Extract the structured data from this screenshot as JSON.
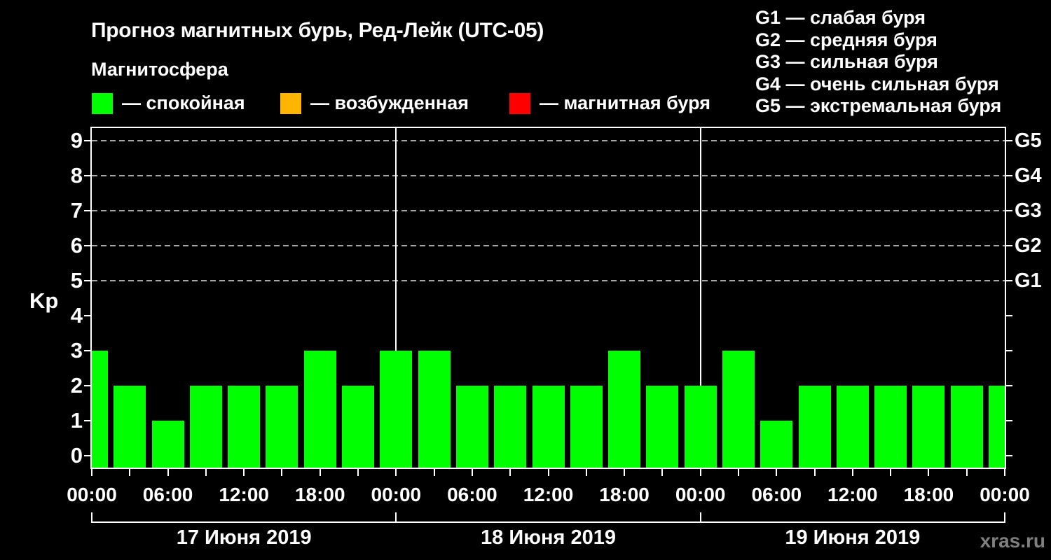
{
  "title": "Прогноз магнитных бурь, Ред-Лейк (UTC-05)",
  "subtitle": "Магнитосфера",
  "watermark": "xras.ru",
  "colors": {
    "background": "#000000",
    "axis": "#FFFFFF",
    "grid": "#A6A6A6",
    "quiet": "#00FF00",
    "excited": "#FFB400",
    "storm": "#FF0000",
    "watermark": "#7F7F7F"
  },
  "magnetosphere_legend": [
    {
      "state": "quiet",
      "color": "#00FF00",
      "label": "— спокойная"
    },
    {
      "state": "excited",
      "color": "#FFB400",
      "label": "— возбужденная"
    },
    {
      "state": "storm",
      "color": "#FF0000",
      "label": "— магнитная буря"
    }
  ],
  "storm_scale_legend": [
    "G1 — слабая буря",
    "G2 — средняя буря",
    "G3 — сильная буря",
    "G4 — очень сильная буря",
    "G5 — экстремальная буря"
  ],
  "chart_data": {
    "type": "bar",
    "ylabel": "Kp",
    "ylim": [
      0,
      9.4
    ],
    "yticks": [
      0,
      1,
      2,
      3,
      4,
      5,
      6,
      7,
      8,
      9
    ],
    "grid_levels": [
      5,
      6,
      7,
      8,
      9
    ],
    "right_axis_labels": [
      {
        "label": "G1",
        "kp": 5
      },
      {
        "label": "G2",
        "kp": 6
      },
      {
        "label": "G3",
        "kp": 7
      },
      {
        "label": "G4",
        "kp": 8
      },
      {
        "label": "G5",
        "kp": 9
      }
    ],
    "interval_hours": 3,
    "time_tick_labels": [
      "00:00",
      "06:00",
      "12:00",
      "18:00",
      "00:00",
      "06:00",
      "12:00",
      "18:00",
      "00:00",
      "06:00",
      "12:00",
      "18:00",
      "00:00"
    ],
    "days": [
      {
        "date": "17 Июня 2019",
        "kp": [
          3,
          2,
          1,
          2,
          2,
          2,
          3,
          2
        ]
      },
      {
        "date": "18 Июня 2019",
        "kp": [
          3,
          3,
          2,
          2,
          2,
          2,
          3,
          2
        ]
      },
      {
        "date": "19 Июня 2019",
        "kp": [
          2,
          3,
          1,
          2,
          2,
          2,
          2,
          2
        ]
      }
    ],
    "next_day_first_kp": 2
  }
}
